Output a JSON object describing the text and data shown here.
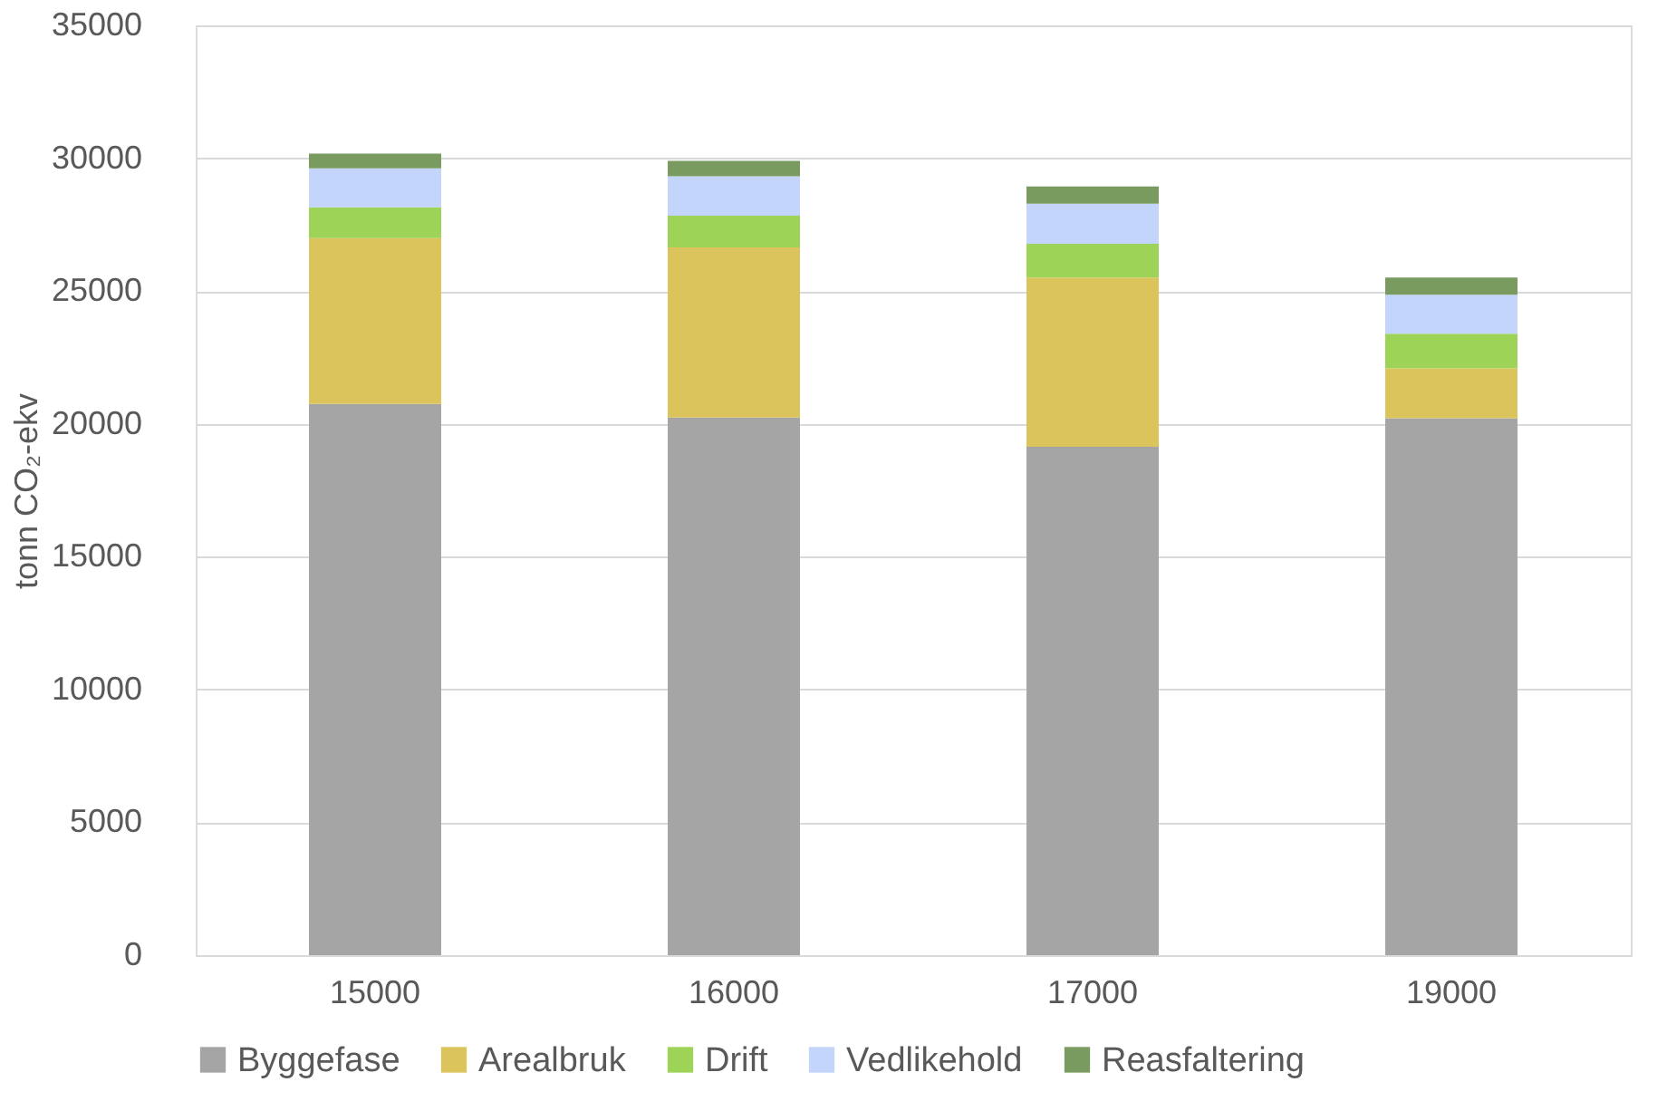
{
  "chart_data": {
    "type": "bar",
    "stacked": true,
    "ylabel": "tonn CO₂-ekv",
    "categories": [
      "15000",
      "16000",
      "17000",
      "19000"
    ],
    "series": [
      {
        "name": "Byggefase",
        "color": "#a5a5a5",
        "values": [
          20750,
          20240,
          19140,
          20210
        ]
      },
      {
        "name": "Arealbruk",
        "color": "#dcc45c",
        "values": [
          6240,
          6400,
          6370,
          1880
        ]
      },
      {
        "name": "Drift",
        "color": "#9dd356",
        "values": [
          1160,
          1200,
          1270,
          1300
        ]
      },
      {
        "name": "Vedlikehold",
        "color": "#c3d5fb",
        "values": [
          1470,
          1480,
          1510,
          1470
        ]
      },
      {
        "name": "Reasfaltering",
        "color": "#7a9b5f",
        "values": [
          550,
          580,
          650,
          650
        ]
      }
    ],
    "ylim": [
      0,
      35000
    ],
    "yticks": [
      0,
      5000,
      10000,
      15000,
      20000,
      25000,
      30000,
      35000
    ],
    "grid": "y",
    "legend": "bottom"
  }
}
